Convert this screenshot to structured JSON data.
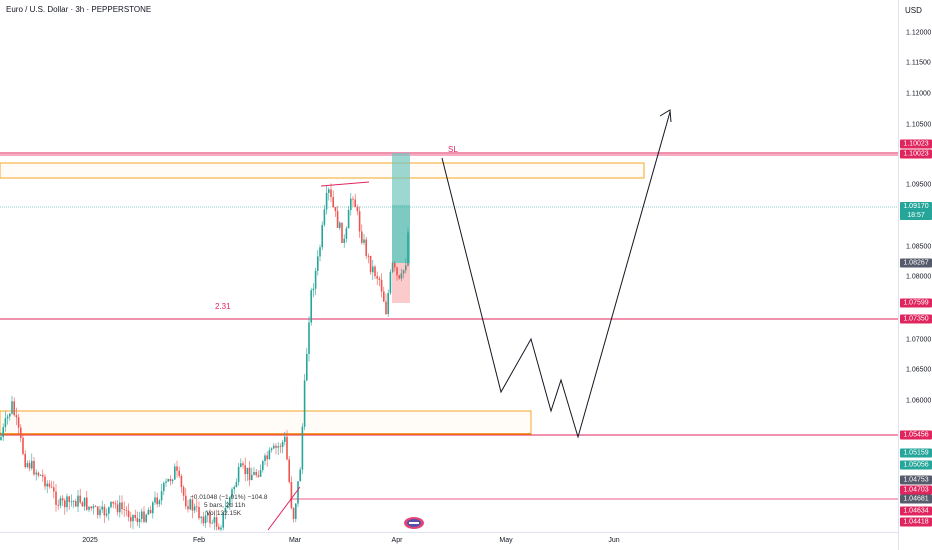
{
  "header": {
    "title": "Euro / U.S. Dollar · 3h · PEPPERSTONE",
    "currency": "USD"
  },
  "price_axis": {
    "ticks": [
      "1.12000",
      "1.11500",
      "1.11000",
      "1.10500",
      "1.09500",
      "1.08500",
      "1.08000",
      "1.07000",
      "1.06500",
      "1.06000"
    ]
  },
  "price_tags": [
    {
      "label": "1.10023",
      "color": "#e0245e"
    },
    {
      "label": "1.10023",
      "color": "#e0245e"
    },
    {
      "label": "1.09170",
      "label2": "18:57",
      "color": "#26a69a"
    },
    {
      "label": "1.08267",
      "color": "#555b6a"
    },
    {
      "label": "1.07599",
      "color": "#e0245e"
    },
    {
      "label": "1.07350",
      "color": "#e0245e"
    },
    {
      "label": "1.05456",
      "color": "#e0245e"
    },
    {
      "label": "1.05159",
      "color": "#26a69a"
    },
    {
      "label": "1.05056",
      "color": "#26a69a"
    },
    {
      "label": "1.04753",
      "color": "#555b6a"
    },
    {
      "label": "1.04703",
      "color": "#e0245e"
    },
    {
      "label": "1.04681",
      "color": "#555b6a"
    },
    {
      "label": "1.04634",
      "color": "#e0245e"
    },
    {
      "label": "1.04418",
      "color": "#e0245e"
    }
  ],
  "time_axis": {
    "labels": [
      "2025",
      "Feb",
      "Mar",
      "Apr",
      "May",
      "Jun"
    ]
  },
  "annotations": {
    "sl_label": "SL",
    "ratio_label": "2.31"
  },
  "measure_stats": {
    "line1": "−0.01048 (−1.01%) −104.8",
    "line2": "5 bars, 2d 11h",
    "line3": "Vol 132.15K"
  },
  "icons": {
    "logo": "tradingview-logo-icon"
  },
  "colors": {
    "up": "#26a69a",
    "down": "#ef5350",
    "zone": "#f5a623",
    "level": "#e0245e",
    "projection": "#131722",
    "target": "#26a69a"
  },
  "series": {
    "candles_seed": 7
  }
}
